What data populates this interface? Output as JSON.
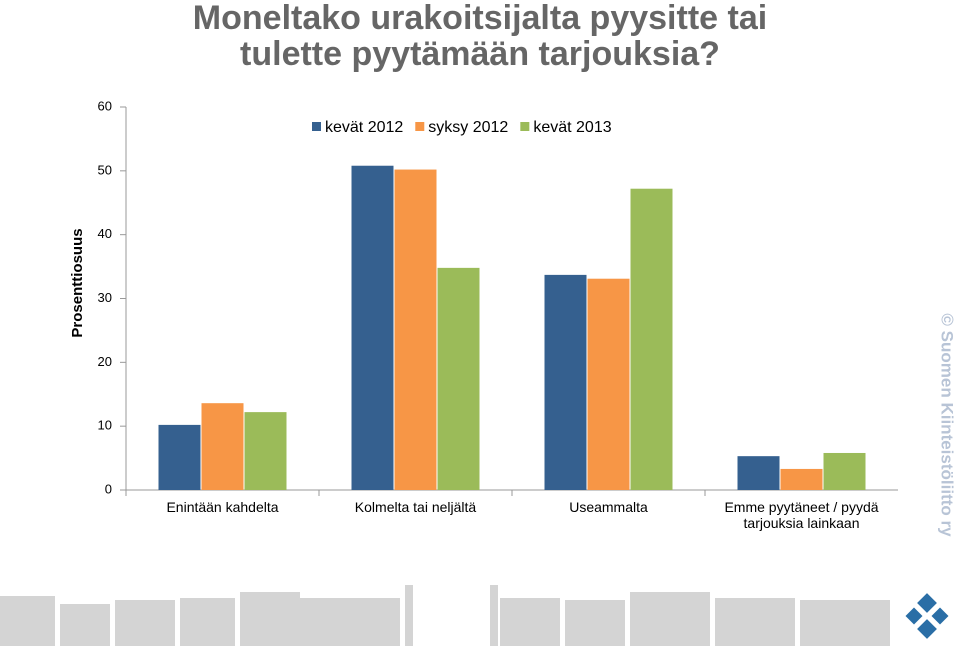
{
  "chart_data": {
    "type": "bar",
    "title": "Moneltako urakoitsijalta pyysitte tai tulette pyytämään tarjouksia?",
    "y_label": "Prosenttiosuus",
    "source": "© Suomen Kiinteistöliitto ry",
    "categories": [
      "Enintään kahdelta",
      "Kolmelta tai neljältä",
      "Useammalta",
      "Emme pyytäneet / pyydä tarjouksia lainkaan"
    ],
    "series": [
      {
        "name": "kevät 2012",
        "color": "#35608f",
        "values": [
          10.2,
          50.8,
          33.7,
          5.3
        ]
      },
      {
        "name": "syksy 2012",
        "color": "#f79646",
        "values": [
          13.6,
          50.2,
          33.1,
          3.3
        ]
      },
      {
        "name": "kevät 2013",
        "color": "#9bbb59",
        "values": [
          12.2,
          34.8,
          47.2,
          5.8
        ]
      }
    ],
    "ylim": [
      0,
      60
    ],
    "yticks": [
      0,
      10,
      20,
      30,
      40,
      50,
      60
    ],
    "grid": false
  }
}
